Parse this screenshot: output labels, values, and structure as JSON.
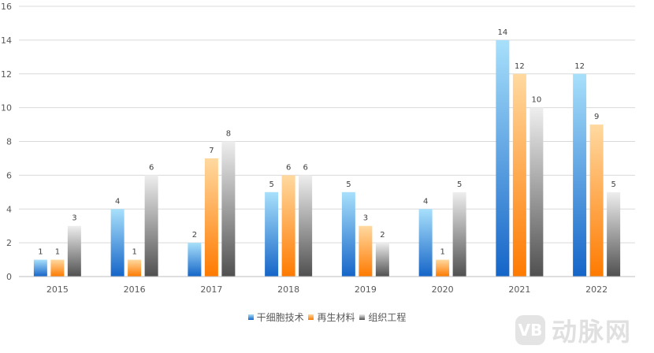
{
  "chart_data": {
    "type": "bar",
    "categories": [
      "2015",
      "2016",
      "2017",
      "2018",
      "2019",
      "2020",
      "2021",
      "2022"
    ],
    "series": [
      {
        "name": "干细胞技术",
        "values": [
          1,
          4,
          2,
          5,
          5,
          4,
          14,
          12
        ],
        "color": "#4aaef0"
      },
      {
        "name": "再生材料",
        "values": [
          1,
          1,
          7,
          6,
          3,
          1,
          12,
          9
        ],
        "color": "#ff9a1f"
      },
      {
        "name": "组织工程",
        "values": [
          3,
          6,
          8,
          6,
          2,
          5,
          10,
          5
        ],
        "color": "#8c8c8c"
      }
    ],
    "ylim": [
      0,
      16
    ],
    "yticks": [
      0,
      2,
      4,
      6,
      8,
      10,
      12,
      14,
      16
    ],
    "grid": true,
    "legend_position": "bottom"
  },
  "watermark": {
    "logo": "VB",
    "text": "动脉网"
  }
}
